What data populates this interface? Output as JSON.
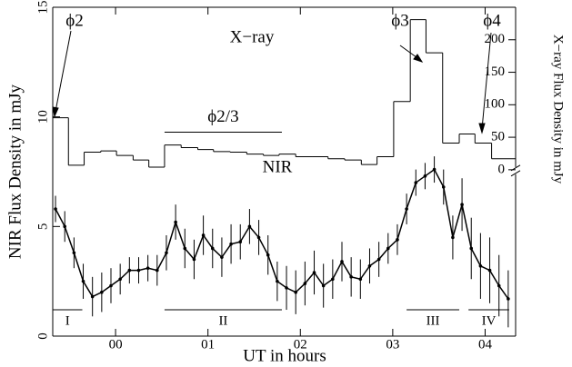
{
  "chart_data": {
    "type": "line",
    "x_label": "UT in hours",
    "y_label": "NIR Flux Density in mJy",
    "y2_label": "X−ray Flux Density in mJy",
    "xlim": [
      -0.68,
      4.33
    ],
    "xticks": [
      {
        "value": 0,
        "label": "00"
      },
      {
        "value": 1,
        "label": "01"
      },
      {
        "value": 2,
        "label": "02"
      },
      {
        "value": 3,
        "label": "03"
      },
      {
        "value": 4,
        "label": "04"
      }
    ],
    "ylim": [
      0,
      15
    ],
    "yticks": [
      0,
      5,
      10,
      15
    ],
    "y2lim": [
      -256,
      250
    ],
    "y2ticks": [
      0,
      50,
      100,
      150,
      200
    ],
    "series": [
      {
        "name": "NIR",
        "color": "#000000",
        "x": [
          -0.65,
          -0.55,
          -0.45,
          -0.35,
          -0.25,
          -0.15,
          -0.05,
          0.05,
          0.15,
          0.25,
          0.35,
          0.45,
          0.55,
          0.65,
          0.75,
          0.85,
          0.95,
          1.05,
          1.15,
          1.25,
          1.35,
          1.45,
          1.55,
          1.65,
          1.75,
          1.85,
          1.95,
          2.05,
          2.15,
          2.25,
          2.35,
          2.45,
          2.55,
          2.65,
          2.75,
          2.85,
          2.95,
          3.05,
          3.15,
          3.25,
          3.35,
          3.45,
          3.55,
          3.65,
          3.75,
          3.85,
          3.95,
          4.05,
          4.15,
          4.25
        ],
        "values": [
          5.8,
          5.0,
          3.8,
          2.5,
          1.8,
          2.0,
          2.3,
          2.6,
          3.0,
          3.0,
          3.1,
          3.0,
          3.8,
          5.2,
          4.0,
          3.5,
          4.6,
          4.0,
          3.6,
          4.2,
          4.3,
          5.0,
          4.5,
          3.7,
          2.5,
          2.2,
          2.0,
          2.4,
          2.9,
          2.3,
          2.6,
          3.4,
          2.7,
          2.6,
          3.2,
          3.5,
          4.0,
          4.4,
          5.8,
          7.0,
          7.3,
          7.6,
          6.8,
          4.5,
          6.0,
          4.0,
          3.2,
          3.0,
          2.3,
          1.7
        ],
        "errors": [
          0.6,
          0.7,
          0.7,
          0.8,
          0.9,
          0.9,
          0.8,
          0.7,
          0.6,
          0.6,
          0.6,
          0.7,
          0.8,
          0.8,
          0.9,
          0.9,
          0.9,
          0.9,
          0.9,
          0.9,
          0.8,
          0.8,
          0.8,
          0.9,
          0.9,
          1.0,
          1.0,
          1.0,
          1.0,
          1.0,
          0.9,
          0.9,
          0.9,
          0.9,
          0.8,
          0.8,
          0.7,
          0.7,
          0.7,
          0.6,
          0.6,
          0.6,
          0.8,
          1.0,
          1.2,
          1.4,
          1.5,
          1.5,
          1.4,
          1.3
        ]
      },
      {
        "name": "X−ray",
        "color": "#000000",
        "axis": "y2",
        "bins": [
          -0.68,
          -0.51,
          -0.34,
          -0.16,
          0.01,
          0.19,
          0.36,
          0.53,
          0.71,
          0.89,
          1.06,
          1.24,
          1.42,
          1.6,
          1.77,
          1.95,
          2.13,
          2.3,
          2.48,
          2.66,
          2.83,
          3.01,
          3.19,
          3.36,
          3.54,
          3.72,
          3.89,
          4.07,
          4.33
        ],
        "values": [
          80,
          7,
          27,
          29,
          22,
          15,
          4,
          38,
          34,
          31,
          28,
          27,
          24,
          22,
          24,
          20,
          20,
          17,
          15,
          8,
          20,
          105,
          231,
          180,
          41,
          55,
          41,
          17
        ]
      }
    ],
    "annotations": [
      "ϕ2",
      "ϕ3",
      "ϕ4"
    ],
    "phi23": {
      "label": "ϕ2/3",
      "start": 0.53,
      "end": 1.8
    },
    "intervals": [
      {
        "label": "I",
        "start": -0.68,
        "end": -0.36
      },
      {
        "label": "II",
        "start": 0.53,
        "end": 1.8
      },
      {
        "label": "III",
        "start": 3.15,
        "end": 3.72
      },
      {
        "label": "IV",
        "start": 3.82,
        "end": 4.26
      }
    ]
  }
}
